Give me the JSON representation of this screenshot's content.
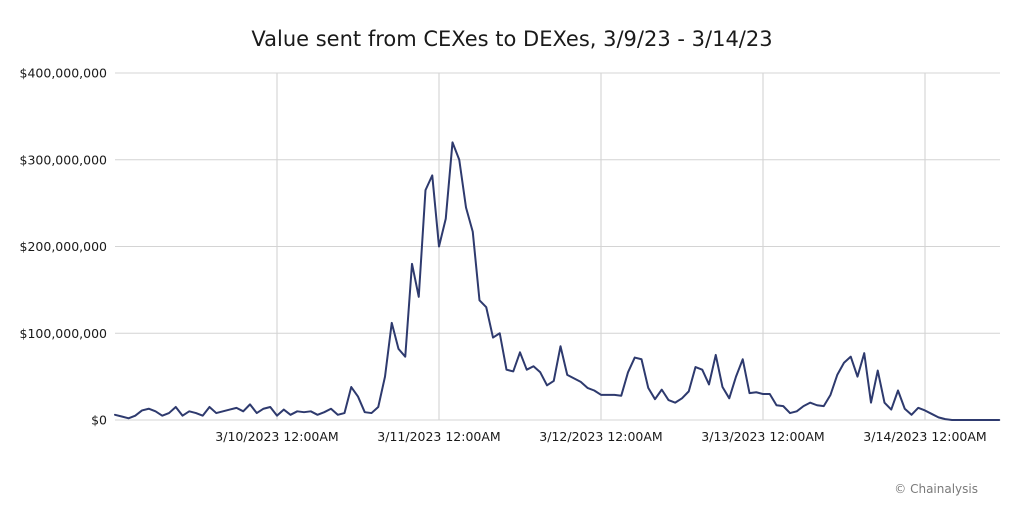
{
  "chart_data": {
    "type": "line",
    "title": "Value sent from CEXes to DEXes, 3/9/23 - 3/14/23",
    "credit": "© Chainalysis",
    "xlabel": "",
    "ylabel": "",
    "ylim": [
      0,
      400000000
    ],
    "y_ticks": [
      {
        "value": 0,
        "label": "$0"
      },
      {
        "value": 100000000,
        "label": "$100,000,000"
      },
      {
        "value": 200000000,
        "label": "$200,000,000"
      },
      {
        "value": 300000000,
        "label": "$300,000,000"
      },
      {
        "value": 400000000,
        "label": "$400,000,000"
      }
    ],
    "x_interval_hours": 1,
    "x_ticks": [
      {
        "index": 24,
        "label": "3/10/2023 12:00AM"
      },
      {
        "index": 48,
        "label": "3/11/2023 12:00AM"
      },
      {
        "index": 72,
        "label": "3/12/2023 12:00AM"
      },
      {
        "index": 96,
        "label": "3/13/2023 12:00AM"
      },
      {
        "index": 120,
        "label": "3/14/2023 12:00AM"
      }
    ],
    "grid": true,
    "line_color": "#2e3a6e",
    "series": [
      {
        "values": [
          6000000,
          4000000,
          2000000,
          5000000,
          11000000,
          13000000,
          10000000,
          5000000,
          8000000,
          15000000,
          5000000,
          10000000,
          8000000,
          5000000,
          15000000,
          8000000,
          10000000,
          12000000,
          14000000,
          10000000,
          18000000,
          8000000,
          13000000,
          15000000,
          5000000,
          12000000,
          6000000,
          10000000,
          9000000,
          10000000,
          6000000,
          9000000,
          13000000,
          6000000,
          8000000,
          38000000,
          27000000,
          9000000,
          8000000,
          15000000,
          50000000,
          112000000,
          82000000,
          73000000,
          180000000,
          142000000,
          265000000,
          282000000,
          200000000,
          232000000,
          320000000,
          300000000,
          245000000,
          217000000,
          138000000,
          130000000,
          95000000,
          100000000,
          58000000,
          56000000,
          78000000,
          58000000,
          62000000,
          55000000,
          40000000,
          45000000,
          85000000,
          52000000,
          48000000,
          44000000,
          37000000,
          34000000,
          29000000,
          29000000,
          29000000,
          28000000,
          55000000,
          72000000,
          70000000,
          37000000,
          24000000,
          35000000,
          23000000,
          20000000,
          25000000,
          33000000,
          61000000,
          58000000,
          41000000,
          75000000,
          38000000,
          25000000,
          50000000,
          70000000,
          31000000,
          32000000,
          30000000,
          30000000,
          17000000,
          16000000,
          8000000,
          10000000,
          16000000,
          20000000,
          17000000,
          16000000,
          29000000,
          52000000,
          66000000,
          73000000,
          50000000,
          77000000,
          20000000,
          57000000,
          20000000,
          12000000,
          34000000,
          13000000,
          6000000,
          14000000,
          11000000,
          7000000,
          3000000,
          1000000,
          0,
          0,
          0,
          0,
          0,
          0,
          0,
          0
        ]
      }
    ]
  }
}
